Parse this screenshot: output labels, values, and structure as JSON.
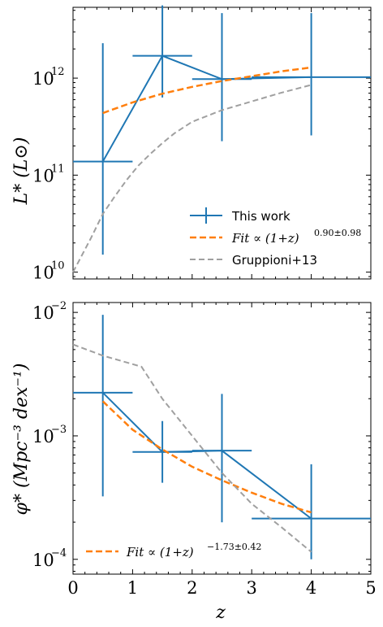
{
  "chart_data": [
    {
      "type": "line",
      "ylabel": "L* (L⊙)",
      "xlim": [
        0,
        5
      ],
      "ylim_log10": [
        9.93,
        12.73
      ],
      "yscale": "log",
      "yticks": [
        {
          "v": 10,
          "label": "10",
          "exp": "10"
        },
        {
          "v": 11,
          "label": "10",
          "exp": "11"
        },
        {
          "v": 12,
          "label": "10",
          "exp": "12"
        }
      ],
      "series": [
        {
          "name": "This work",
          "color": "#1f77b4",
          "style": "errorbar",
          "x": [
            0.5,
            1.5,
            2.5,
            4.0
          ],
          "x_low": [
            0.0,
            1.0,
            2.0,
            3.0
          ],
          "x_high": [
            1.0,
            2.0,
            3.0,
            5.0
          ],
          "y_log10": [
            11.14,
            12.23,
            11.99,
            12.01
          ],
          "y_low_log10": [
            10.18,
            11.8,
            11.35,
            11.41
          ],
          "y_high_log10": [
            12.36,
            12.75,
            12.67,
            12.67
          ]
        },
        {
          "name": "Fit ∝ (1+z)",
          "name_exp": "0.90±0.98",
          "color": "#ff7f0e",
          "style": "dashed",
          "x": [
            0.5,
            1.0,
            1.5,
            2.0,
            2.5,
            3.0,
            3.5,
            4.0
          ],
          "y_log10": [
            11.64,
            11.75,
            11.84,
            11.91,
            11.97,
            12.02,
            12.07,
            12.11
          ]
        },
        {
          "name": "Gruppioni+13",
          "color": "#a0a0a0",
          "style": "dashed",
          "x": [
            0.0,
            0.3,
            0.5,
            0.7,
            0.9,
            1.1,
            1.3,
            1.5,
            1.7,
            2.0,
            2.5,
            3.0,
            3.5,
            4.0
          ],
          "y_log10": [
            10.0,
            10.35,
            10.6,
            10.78,
            10.95,
            11.1,
            11.22,
            11.33,
            11.43,
            11.55,
            11.67,
            11.76,
            11.85,
            11.93
          ]
        }
      ],
      "legend": "lower-right"
    },
    {
      "type": "line",
      "ylabel": "φ* (Mpc⁻³ dex⁻¹)",
      "xlabel": "z",
      "xlim": [
        0,
        5
      ],
      "xticks": [
        "0",
        "1",
        "2",
        "3",
        "4",
        "5"
      ],
      "ylim_log10": [
        -4.12,
        -1.92
      ],
      "yscale": "log",
      "yticks": [
        {
          "v": -4,
          "label": "10",
          "exp": "−4"
        },
        {
          "v": -3,
          "label": "10",
          "exp": "−3"
        },
        {
          "v": -2,
          "label": "10",
          "exp": "−2"
        }
      ],
      "series": [
        {
          "name": "This work",
          "color": "#1f77b4",
          "style": "errorbar",
          "x": [
            0.5,
            1.5,
            2.5,
            4.0
          ],
          "x_low": [
            0.0,
            1.0,
            2.0,
            3.0
          ],
          "x_high": [
            1.0,
            2.0,
            3.0,
            5.0
          ],
          "y_log10": [
            -2.65,
            -3.13,
            -3.12,
            -3.67
          ],
          "y_low_log10": [
            -3.49,
            -3.38,
            -3.7,
            -4.0
          ],
          "y_high_log10": [
            -2.02,
            -2.88,
            -2.66,
            -3.23
          ]
        },
        {
          "name": "Fit ∝ (1+z)",
          "name_exp": "−1.73±0.42",
          "color": "#ff7f0e",
          "style": "dashed",
          "x": [
            0.5,
            1.0,
            1.5,
            2.0,
            2.5,
            3.0,
            3.5,
            4.0
          ],
          "y_log10": [
            -2.72,
            -2.95,
            -3.11,
            -3.25,
            -3.36,
            -3.46,
            -3.55,
            -3.62
          ]
        },
        {
          "name": "",
          "color": "#a0a0a0",
          "style": "dashed",
          "x": [
            0.0,
            0.5,
            1.15,
            1.5,
            2.0,
            2.5,
            3.0,
            3.5,
            4.0
          ],
          "y_log10": [
            -2.26,
            -2.35,
            -2.44,
            -2.7,
            -3.0,
            -3.3,
            -3.55,
            -3.74,
            -3.94
          ]
        }
      ],
      "legend": "lower-left"
    }
  ]
}
